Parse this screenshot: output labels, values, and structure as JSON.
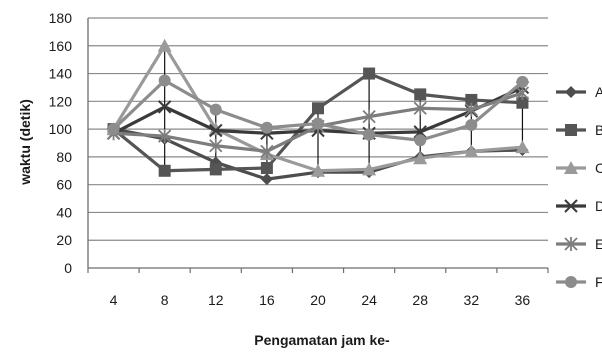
{
  "chart_data": {
    "type": "line",
    "xlabel": "Pengamatan jam ke-",
    "ylabel": "waktu (detik)",
    "categories": [
      "4",
      "8",
      "12",
      "16",
      "20",
      "24",
      "28",
      "32",
      "36"
    ],
    "ylim": [
      0,
      180
    ],
    "yticks": [
      0,
      20,
      40,
      60,
      80,
      100,
      120,
      140,
      160,
      180
    ],
    "grid": true,
    "legend_position": "right",
    "series": [
      {
        "name": "A",
        "marker": "diamond",
        "color": "#4d4d4d",
        "values": [
          100,
          93,
          76,
          64,
          69,
          69,
          80,
          84,
          85
        ]
      },
      {
        "name": "B",
        "marker": "square",
        "color": "#555555",
        "values": [
          100,
          70,
          71,
          72,
          115,
          140,
          125,
          121,
          119
        ]
      },
      {
        "name": "C",
        "marker": "triangle",
        "color": "#9a9a9a",
        "values": [
          100,
          160,
          100,
          82,
          70,
          71,
          79,
          84,
          87
        ]
      },
      {
        "name": "D",
        "marker": "x",
        "color": "#3a3a3a",
        "values": [
          97,
          116,
          99,
          97,
          99,
          97,
          98,
          113,
          130
        ]
      },
      {
        "name": "E",
        "marker": "star",
        "color": "#7d7d7d",
        "values": [
          97,
          95,
          88,
          84,
          102,
          109,
          115,
          114,
          126
        ]
      },
      {
        "name": "F",
        "marker": "circle",
        "color": "#8c8c8c",
        "values": [
          100,
          135,
          114,
          101,
          104,
          96,
          92,
          103,
          134
        ]
      }
    ]
  }
}
